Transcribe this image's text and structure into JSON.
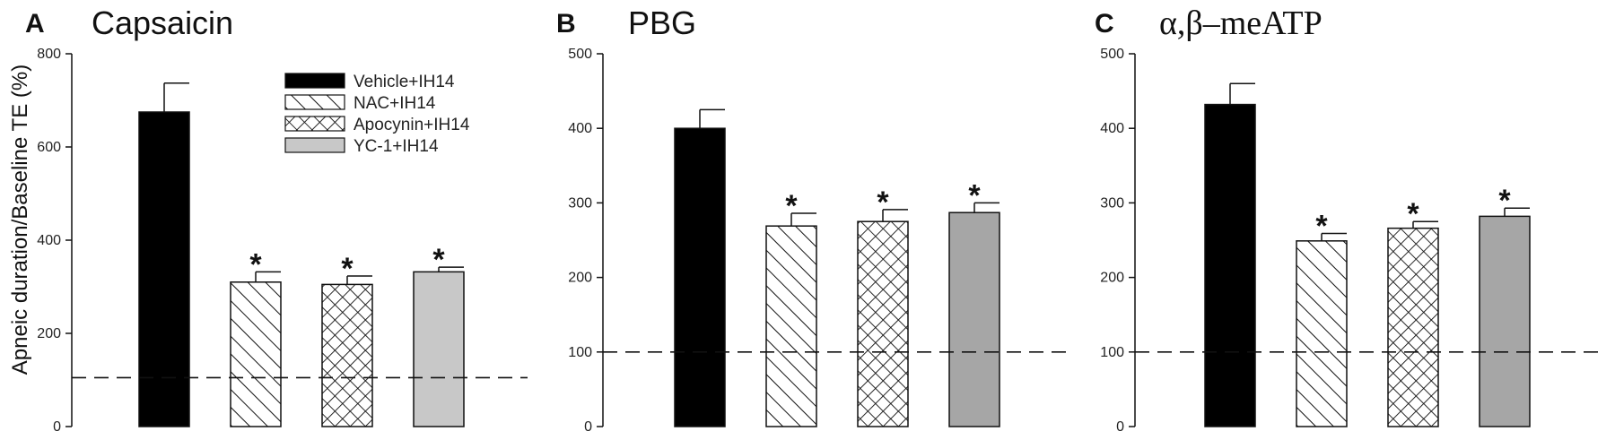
{
  "figure": {
    "ylabel": "Apneic duration/Baseline TE (%)"
  },
  "legend": {
    "items": [
      {
        "label": "Vehicle+IH14",
        "pattern": "solid-black"
      },
      {
        "label": "NAC+IH14",
        "pattern": "diagonal-hatch"
      },
      {
        "label": "Apocynin+IH14",
        "pattern": "cross-hatch"
      },
      {
        "label": "YC-1+IH14",
        "pattern": "solid-gray"
      }
    ]
  },
  "chart_data": [
    {
      "type": "bar",
      "panel": "A",
      "title": "Capsaicin",
      "categories": [
        "Vehicle+IH14",
        "NAC+IH14",
        "Apocynin+IH14",
        "YC-1+IH14"
      ],
      "values": [
        675,
        310,
        305,
        332
      ],
      "errors": [
        62,
        22,
        18,
        10
      ],
      "significant": [
        false,
        true,
        true,
        true
      ],
      "significance_marker": "*",
      "ylim": [
        0,
        800
      ],
      "yticks": [
        0,
        200,
        400,
        600,
        800
      ],
      "baseline": 105,
      "fills": [
        "#000000",
        "diagonal-hatch",
        "cross-hatch",
        "#c8c8c8"
      ]
    },
    {
      "type": "bar",
      "panel": "B",
      "title": "PBG",
      "categories": [
        "Vehicle+IH14",
        "NAC+IH14",
        "Apocynin+IH14",
        "YC-1+IH14"
      ],
      "values": [
        400,
        269,
        275,
        287
      ],
      "errors": [
        25,
        17,
        16,
        13
      ],
      "significant": [
        false,
        true,
        true,
        true
      ],
      "significance_marker": "*",
      "ylim": [
        0,
        500
      ],
      "yticks": [
        0,
        100,
        200,
        300,
        400,
        500
      ],
      "baseline": 100,
      "fills": [
        "#000000",
        "diagonal-hatch",
        "cross-hatch",
        "#a6a6a6"
      ]
    },
    {
      "type": "bar",
      "panel": "C",
      "title": "α,β–meATP",
      "categories": [
        "Vehicle+IH14",
        "NAC+IH14",
        "Apocynin+IH14",
        "YC-1+IH14"
      ],
      "values": [
        432,
        249,
        266,
        282
      ],
      "errors": [
        28,
        10,
        9,
        11
      ],
      "significant": [
        false,
        true,
        true,
        true
      ],
      "significance_marker": "*",
      "ylim": [
        0,
        500
      ],
      "yticks": [
        0,
        100,
        200,
        300,
        400,
        500
      ],
      "baseline": 100,
      "fills": [
        "#000000",
        "diagonal-hatch",
        "cross-hatch",
        "#a6a6a6"
      ]
    }
  ]
}
